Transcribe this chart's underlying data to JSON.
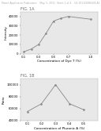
{
  "header": "Patent Application Publication    May. 5, 2011  Sheet 1 of 4    US 2011/0086434 A1",
  "fig_a_label": "FIG. 1A",
  "fig_b_label": "FIG. 1B",
  "plot1": {
    "x": [
      0.1,
      0.2,
      0.3,
      0.4,
      0.5,
      0.6,
      0.7,
      1.0
    ],
    "y": [
      2000,
      5000,
      10000,
      22000,
      35000,
      38000,
      40000,
      37000
    ],
    "xlabel": "Concentration of Dye T (%)",
    "ylabel": "Intensity",
    "ylim": [
      0,
      45000
    ],
    "xlim": [
      0.05,
      1.1
    ],
    "xticks": [
      0.1,
      0.3,
      0.5,
      0.7,
      1.0
    ],
    "xtick_labels": [
      "0.1",
      "0.3",
      "0.5",
      "0.7",
      "1.0"
    ],
    "yticks": [
      0,
      10000,
      20000,
      30000,
      40000
    ],
    "ytick_labels": [
      "0",
      "10000",
      "20000",
      "30000",
      "40000"
    ]
  },
  "plot2": {
    "x": [
      0.1,
      0.2,
      0.3,
      0.4,
      0.5
    ],
    "y": [
      55000,
      68000,
      100000,
      68000,
      58000
    ],
    "xlabel": "Concentration of Pluronic A (%)",
    "ylabel": "Ratio",
    "ylim": [
      40000,
      110000
    ],
    "xlim": [
      0.05,
      0.6
    ],
    "xticks": [
      0.1,
      0.2,
      0.3,
      0.4,
      0.5
    ],
    "xtick_labels": [
      "0.1",
      "0.2",
      "0.3",
      "0.4",
      "0.5"
    ],
    "yticks": [
      40000,
      60000,
      80000,
      100000
    ],
    "ytick_labels": [
      "40000",
      "60000",
      "80000",
      "100000"
    ]
  },
  "line_color": "#888888",
  "marker": "o",
  "marker_size": 1.5,
  "marker_color": "#888888",
  "line_width": 0.6,
  "bg_color": "#ffffff",
  "plot_bg_color": "#e8e8e8",
  "header_fontsize": 2.2,
  "label_fontsize": 3.0,
  "tick_fontsize": 2.8,
  "fig_label_fontsize": 3.5,
  "spine_color": "#aaaaaa"
}
